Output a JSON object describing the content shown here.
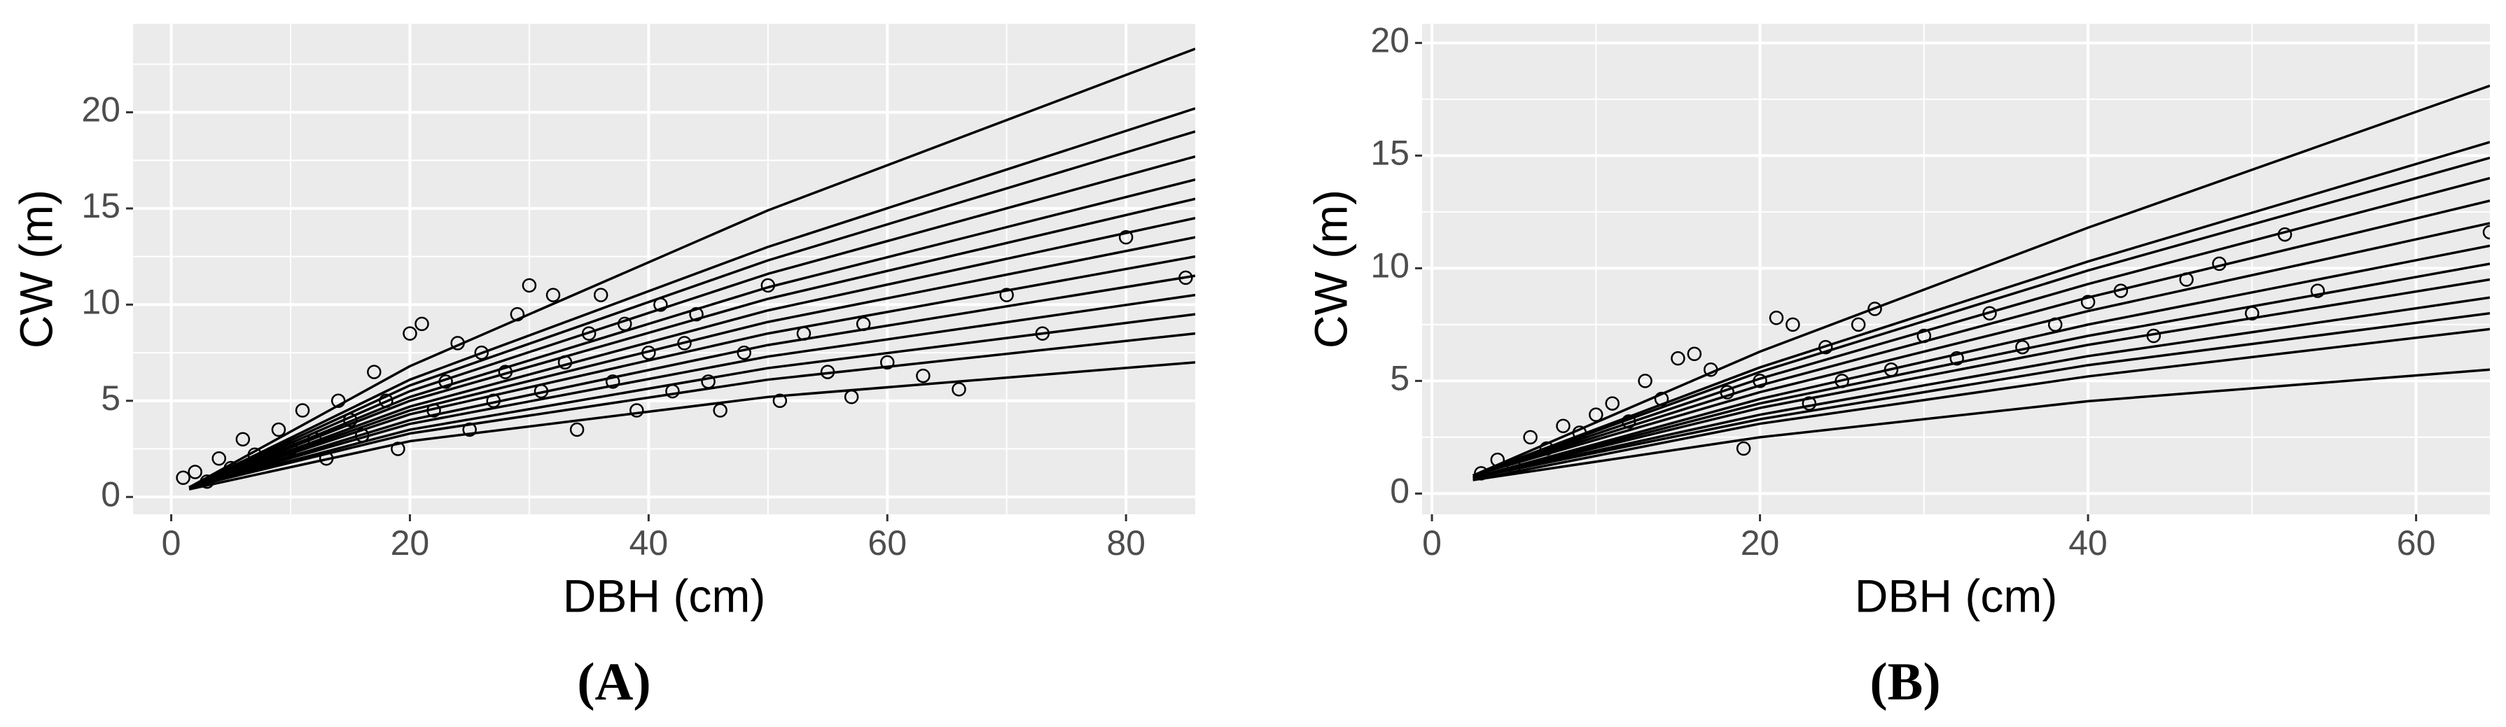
{
  "chart_data": [
    {
      "type": "scatter",
      "title": "(A)",
      "xlabel": "DBH (cm)",
      "ylabel": "CW (m)",
      "xlim": [
        -3.2,
        85.8
      ],
      "ylim": [
        -0.9,
        24.6
      ],
      "xticks": [
        0,
        20,
        40,
        60,
        80
      ],
      "yticks": [
        0,
        5,
        10,
        15,
        20
      ],
      "xminor": [
        10,
        30,
        50,
        70
      ],
      "yminor": [
        2.5,
        7.5,
        12.5,
        17.5,
        22.5
      ],
      "grid": true,
      "color": "#000000",
      "points": {
        "x": [
          1,
          2,
          3,
          4,
          5,
          6,
          7,
          8,
          9,
          10,
          11,
          12,
          13,
          14,
          15,
          16,
          17,
          18,
          19,
          20,
          21,
          22,
          23,
          24,
          25,
          26,
          27,
          28,
          29,
          30,
          31,
          32,
          33,
          34,
          35,
          36,
          37,
          38,
          39,
          40,
          41,
          42,
          43,
          44,
          45,
          46,
          48,
          50,
          51,
          53,
          55,
          57,
          58,
          60,
          63,
          66,
          70,
          73,
          80,
          85
        ],
        "values": [
          1.0,
          1.3,
          0.8,
          2.0,
          1.5,
          3.0,
          2.2,
          1.8,
          3.5,
          2.5,
          4.5,
          3.0,
          2.0,
          5.0,
          4.0,
          3.2,
          6.5,
          5.0,
          2.5,
          8.5,
          9.0,
          4.5,
          6.0,
          8.0,
          3.5,
          7.5,
          5.0,
          6.5,
          9.5,
          11.0,
          5.5,
          10.5,
          7.0,
          3.5,
          8.5,
          10.5,
          6.0,
          9.0,
          4.5,
          7.5,
          10.0,
          5.5,
          8.0,
          9.5,
          6.0,
          4.5,
          7.5,
          11.0,
          5.0,
          8.5,
          6.5,
          5.2,
          9.0,
          7.0,
          6.3,
          5.6,
          10.5,
          8.5,
          13.5,
          11.4
        ]
      },
      "series": [
        {
          "x": [
            1.5,
            20,
            50,
            85.8
          ],
          "values": [
            0.5,
            6.8,
            14.9,
            23.3
          ]
        },
        {
          "x": [
            1.5,
            20,
            50,
            85.8
          ],
          "values": [
            0.5,
            6.1,
            13.0,
            20.2
          ]
        },
        {
          "x": [
            1.5,
            20,
            50,
            85.8
          ],
          "values": [
            0.5,
            5.8,
            12.3,
            19.0
          ]
        },
        {
          "x": [
            1.5,
            20,
            50,
            85.8
          ],
          "values": [
            0.5,
            5.5,
            11.6,
            17.7
          ]
        },
        {
          "x": [
            1.5,
            20,
            50,
            85.8
          ],
          "values": [
            0.5,
            5.2,
            10.9,
            16.5
          ]
        },
        {
          "x": [
            1.5,
            20,
            50,
            85.8
          ],
          "values": [
            0.5,
            5.0,
            10.3,
            15.5
          ]
        },
        {
          "x": [
            1.5,
            20,
            50,
            85.8
          ],
          "values": [
            0.5,
            4.7,
            9.7,
            14.5
          ]
        },
        {
          "x": [
            1.5,
            20,
            50,
            85.8
          ],
          "values": [
            0.5,
            4.5,
            9.1,
            13.5
          ]
        },
        {
          "x": [
            1.5,
            20,
            50,
            85.8
          ],
          "values": [
            0.5,
            4.3,
            8.5,
            12.5
          ]
        },
        {
          "x": [
            1.5,
            20,
            50,
            85.8
          ],
          "values": [
            0.5,
            4.0,
            7.9,
            11.5
          ]
        },
        {
          "x": [
            1.5,
            20,
            50,
            85.8
          ],
          "values": [
            0.5,
            3.8,
            7.3,
            10.5
          ]
        },
        {
          "x": [
            1.5,
            20,
            50,
            85.8
          ],
          "values": [
            0.5,
            3.5,
            6.7,
            9.5
          ]
        },
        {
          "x": [
            1.5,
            20,
            50,
            85.8
          ],
          "values": [
            0.5,
            3.3,
            6.1,
            8.5
          ]
        },
        {
          "x": [
            1.5,
            20,
            50,
            85.8
          ],
          "values": [
            0.4,
            2.9,
            5.2,
            7.0
          ]
        }
      ]
    },
    {
      "type": "scatter",
      "title": "(B)",
      "xlabel": "DBH (cm)",
      "ylabel": "CW (m)",
      "xlim": [
        -0.6,
        64.5
      ],
      "ylim": [
        -0.92,
        20.85
      ],
      "xticks": [
        0,
        20,
        40,
        60
      ],
      "yticks": [
        0,
        5,
        10,
        15,
        20
      ],
      "xminor": [
        10,
        30,
        50
      ],
      "yminor": [
        2.5,
        7.5,
        12.5,
        17.5
      ],
      "grid": true,
      "color": "#000000",
      "points": {
        "x": [
          3,
          4,
          5,
          6,
          7,
          8,
          9,
          10,
          11,
          12,
          13,
          14,
          15,
          16,
          17,
          18,
          19,
          20,
          21,
          22,
          23,
          24,
          25,
          26,
          27,
          28,
          30,
          32,
          34,
          36,
          38,
          40,
          42,
          44,
          46,
          48,
          50,
          52,
          54,
          64.5
        ],
        "values": [
          0.9,
          1.5,
          1.2,
          2.5,
          2.0,
          3.0,
          2.7,
          3.5,
          4.0,
          3.2,
          5.0,
          4.2,
          6.0,
          6.2,
          5.5,
          4.5,
          2.0,
          5.0,
          7.8,
          7.5,
          4.0,
          6.5,
          5.0,
          7.5,
          8.2,
          5.5,
          7.0,
          6.0,
          8.0,
          6.5,
          7.5,
          8.5,
          9.0,
          7.0,
          9.5,
          10.2,
          8.0,
          11.5,
          9.0,
          11.6
        ]
      },
      "series": [
        {
          "x": [
            2.5,
            20,
            40,
            64.5
          ],
          "values": [
            0.8,
            6.3,
            11.8,
            18.1
          ]
        },
        {
          "x": [
            2.5,
            20,
            40,
            64.5
          ],
          "values": [
            0.8,
            5.6,
            10.3,
            15.6
          ]
        },
        {
          "x": [
            2.5,
            20,
            40,
            64.5
          ],
          "values": [
            0.8,
            5.4,
            9.9,
            14.9
          ]
        },
        {
          "x": [
            2.5,
            20,
            40,
            64.5
          ],
          "values": [
            0.8,
            5.1,
            9.3,
            14.0
          ]
        },
        {
          "x": [
            2.5,
            20,
            40,
            64.5
          ],
          "values": [
            0.8,
            4.8,
            8.7,
            13.0
          ]
        },
        {
          "x": [
            2.5,
            20,
            40,
            64.5
          ],
          "values": [
            0.8,
            4.5,
            8.1,
            12.0
          ]
        },
        {
          "x": [
            2.5,
            20,
            40,
            64.5
          ],
          "values": [
            0.7,
            4.2,
            7.5,
            11.0
          ]
        },
        {
          "x": [
            2.5,
            20,
            40,
            64.5
          ],
          "values": [
            0.7,
            4.0,
            7.0,
            10.2
          ]
        },
        {
          "x": [
            2.5,
            20,
            40,
            64.5
          ],
          "values": [
            0.7,
            3.8,
            6.6,
            9.5
          ]
        },
        {
          "x": [
            2.5,
            20,
            40,
            64.5
          ],
          "values": [
            0.7,
            3.5,
            6.1,
            8.7
          ]
        },
        {
          "x": [
            2.5,
            20,
            40,
            64.5
          ],
          "values": [
            0.7,
            3.3,
            5.7,
            8.0
          ]
        },
        {
          "x": [
            2.5,
            20,
            40,
            64.5
          ],
          "values": [
            0.6,
            3.1,
            5.2,
            7.3
          ]
        },
        {
          "x": [
            2.5,
            20,
            40,
            64.5
          ],
          "values": [
            0.6,
            2.5,
            4.1,
            5.5
          ]
        }
      ]
    }
  ]
}
